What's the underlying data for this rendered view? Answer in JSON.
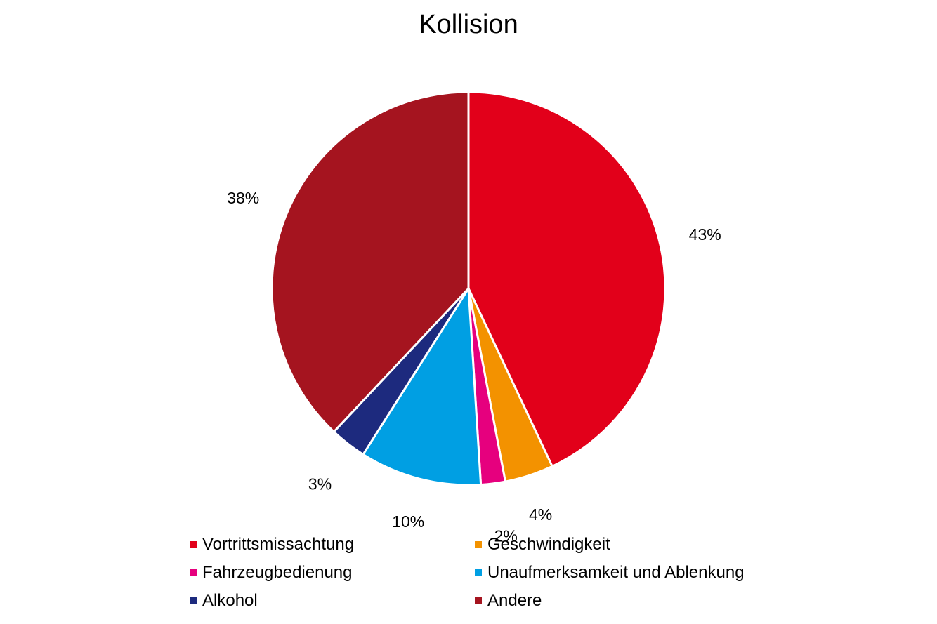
{
  "chart_data": {
    "type": "pie",
    "title": "Kollision",
    "categories": [
      "Vortrittsmissachtung",
      "Geschwindigkeit",
      "Fahrzeugbedienung",
      "Unaufmerksamkeit und Ablenkung",
      "Alkohol",
      "Andere"
    ],
    "values": [
      43,
      4,
      2,
      10,
      3,
      38
    ],
    "labels": [
      "43%",
      "4%",
      "2%",
      "10%",
      "3%",
      "38%"
    ],
    "colors": [
      "#E2001A",
      "#F39200",
      "#E6007E",
      "#009FE3",
      "#1D2A7E",
      "#A5141F"
    ],
    "legend_position": "bottom"
  }
}
